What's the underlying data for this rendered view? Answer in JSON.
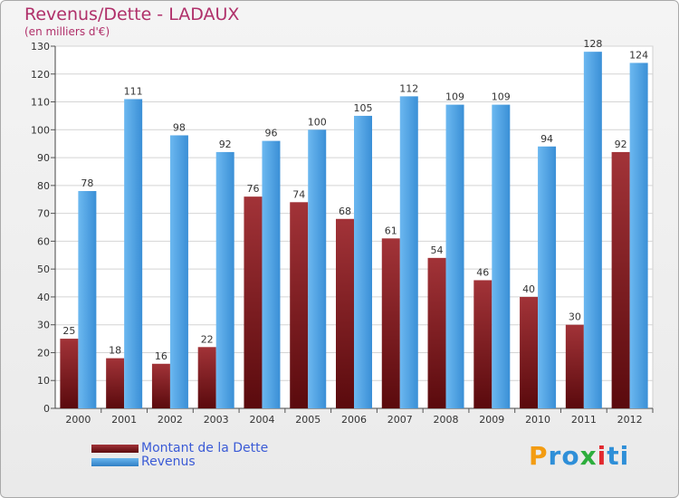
{
  "chart_data": {
    "type": "bar",
    "title": "Revenus/Dette - LADAUX",
    "subtitle": "(en milliers d'€)",
    "categories": [
      "2000",
      "2001",
      "2002",
      "2003",
      "2004",
      "2005",
      "2006",
      "2007",
      "2008",
      "2009",
      "2010",
      "2011",
      "2012"
    ],
    "series": [
      {
        "name": "Montant de la Dette",
        "color": "#7a1f22",
        "values": [
          25,
          18,
          16,
          22,
          76,
          74,
          68,
          61,
          54,
          46,
          40,
          30,
          92
        ]
      },
      {
        "name": "Revenus",
        "color": "#3c97e0",
        "values": [
          78,
          111,
          98,
          92,
          96,
          100,
          105,
          112,
          109,
          109,
          94,
          128,
          124
        ]
      }
    ],
    "ylim": [
      0,
      130
    ],
    "yticks": [
      0,
      10,
      20,
      30,
      40,
      50,
      60,
      70,
      80,
      90,
      100,
      110,
      120,
      130
    ],
    "grid": true,
    "legend_position": "bottom-left",
    "colors": {
      "title": "#b0306a",
      "legend_text": "#3b5bd6",
      "grid": "#d4d4d4"
    }
  },
  "logo": {
    "letters": [
      "P",
      "r",
      "o",
      "x",
      "i",
      "t",
      "i"
    ],
    "colors": [
      "#f39c12",
      "#2f8fd8",
      "#2f8fd8",
      "#2eae3d",
      "#e2292f",
      "#2f8fd8",
      "#2f8fd8"
    ]
  }
}
